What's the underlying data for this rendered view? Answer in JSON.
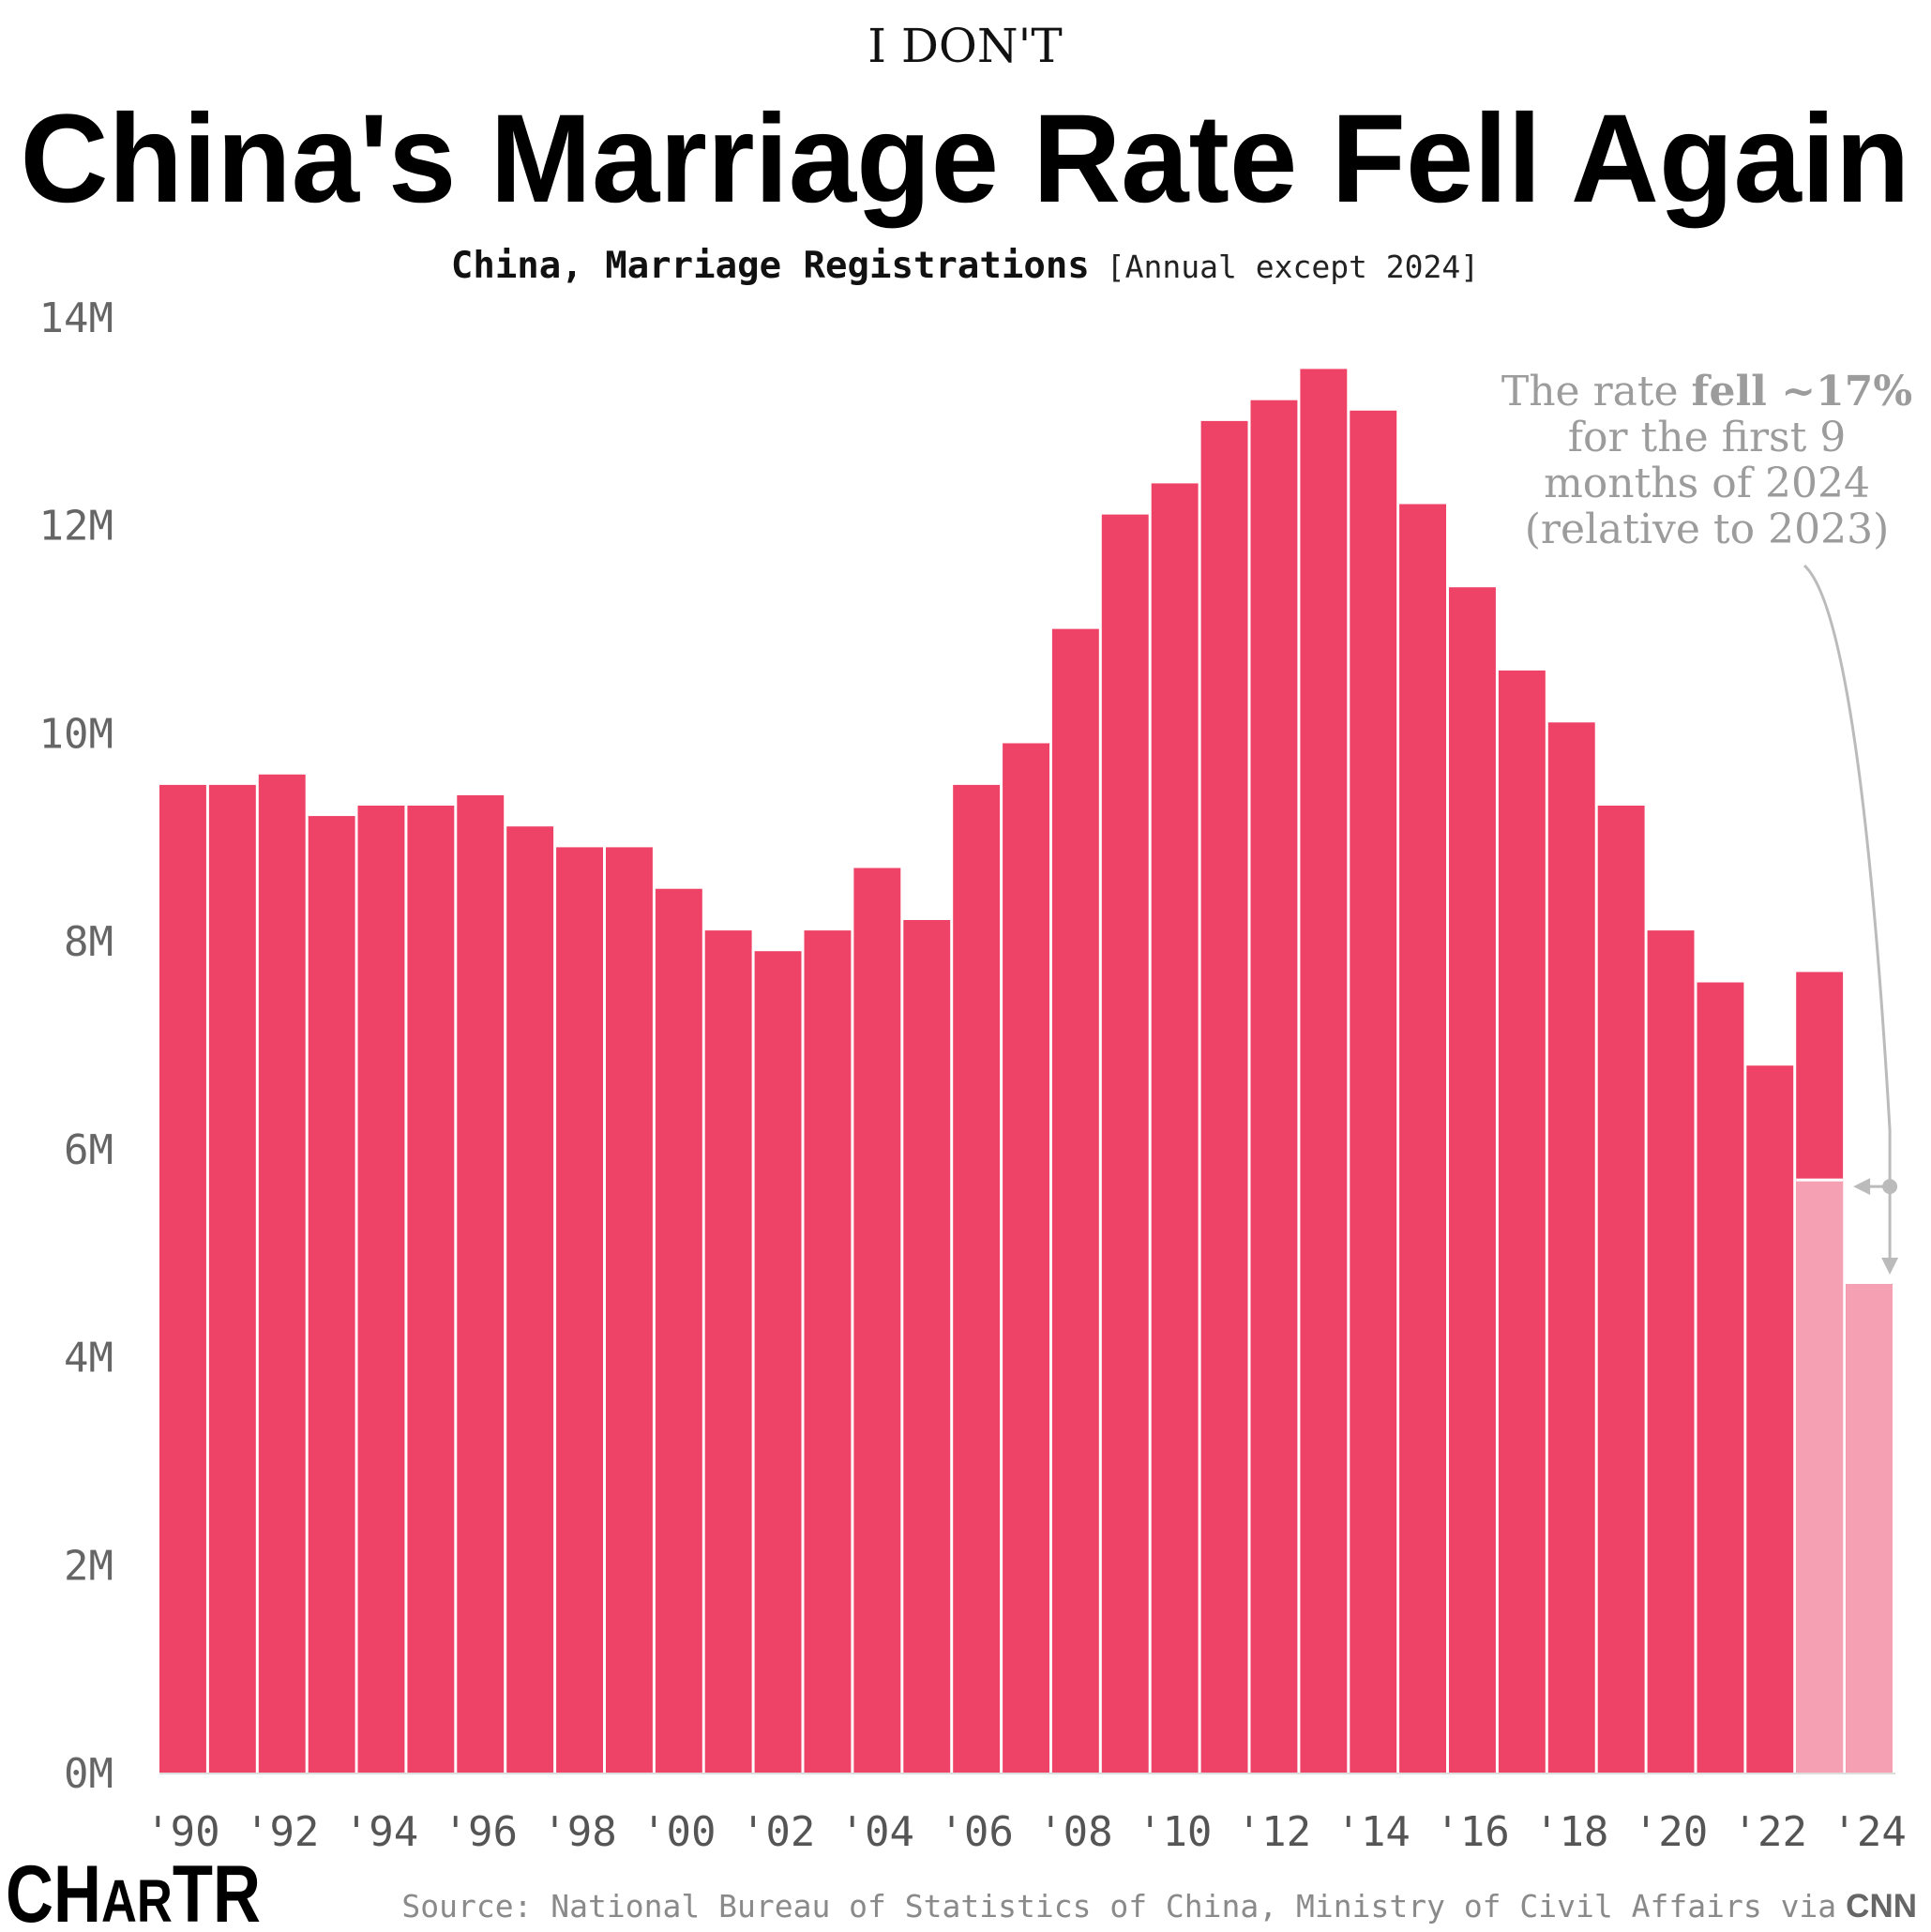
{
  "header": {
    "kicker": "I DON'T",
    "title": "China's Marriage Rate Fell Again",
    "subtitle_main": "China, Marriage Registrations",
    "subtitle_note": "[Annual except 2024]"
  },
  "annotation": {
    "line1_pre": "The rate ",
    "line1_bold": "fell ~17%",
    "line2": "for the first 9",
    "line3": "months of 2024",
    "line4": "(relative to 2023)"
  },
  "footer": {
    "brand_big1": "CH",
    "brand_small": "AR",
    "brand_big2": "TR",
    "source": "Source: National Bureau of Statistics of China, Ministry of Civil Affairs via",
    "source_cnn": "CNN"
  },
  "colors": {
    "bar": "#ee4266",
    "bar_partial": "#f5a0b3",
    "annotation": "#bbbbbb"
  },
  "chart_data": {
    "type": "bar",
    "title": "China's Marriage Rate Fell Again",
    "subtitle": "China, Marriage Registrations [Annual except 2024]",
    "xlabel": "",
    "ylabel": "",
    "ylim": [
      0,
      14
    ],
    "unit_suffix": "M",
    "yticks": [
      "0M",
      "2M",
      "4M",
      "6M",
      "8M",
      "10M",
      "12M",
      "14M"
    ],
    "xticks": [
      "'90",
      "'92",
      "'94",
      "'96",
      "'98",
      "'00",
      "'02",
      "'04",
      "'06",
      "'08",
      "'10",
      "'12",
      "'14",
      "'16",
      "'18",
      "'20",
      "'22",
      "'24"
    ],
    "categories": [
      "1990",
      "1991",
      "1992",
      "1993",
      "1994",
      "1995",
      "1996",
      "1997",
      "1998",
      "1999",
      "2000",
      "2001",
      "2002",
      "2003",
      "2004",
      "2005",
      "2006",
      "2007",
      "2008",
      "2009",
      "2010",
      "2011",
      "2012",
      "2013",
      "2014",
      "2015",
      "2016",
      "2017",
      "2018",
      "2019",
      "2020",
      "2021",
      "2022",
      "2023",
      "2024"
    ],
    "values": [
      9.5,
      9.5,
      9.6,
      9.2,
      9.3,
      9.3,
      9.4,
      9.1,
      8.9,
      8.9,
      8.5,
      8.1,
      7.9,
      8.1,
      8.7,
      8.2,
      9.5,
      9.9,
      11.0,
      12.1,
      12.4,
      13.0,
      13.2,
      13.5,
      13.1,
      12.2,
      11.4,
      10.6,
      10.1,
      9.3,
      8.1,
      7.6,
      6.8,
      7.7,
      4.7
    ],
    "partial": {
      "label": "first 9 months",
      "years": [
        "2023",
        "2024"
      ],
      "values": [
        5.7,
        4.7
      ]
    },
    "grid": false,
    "legend": "none"
  }
}
